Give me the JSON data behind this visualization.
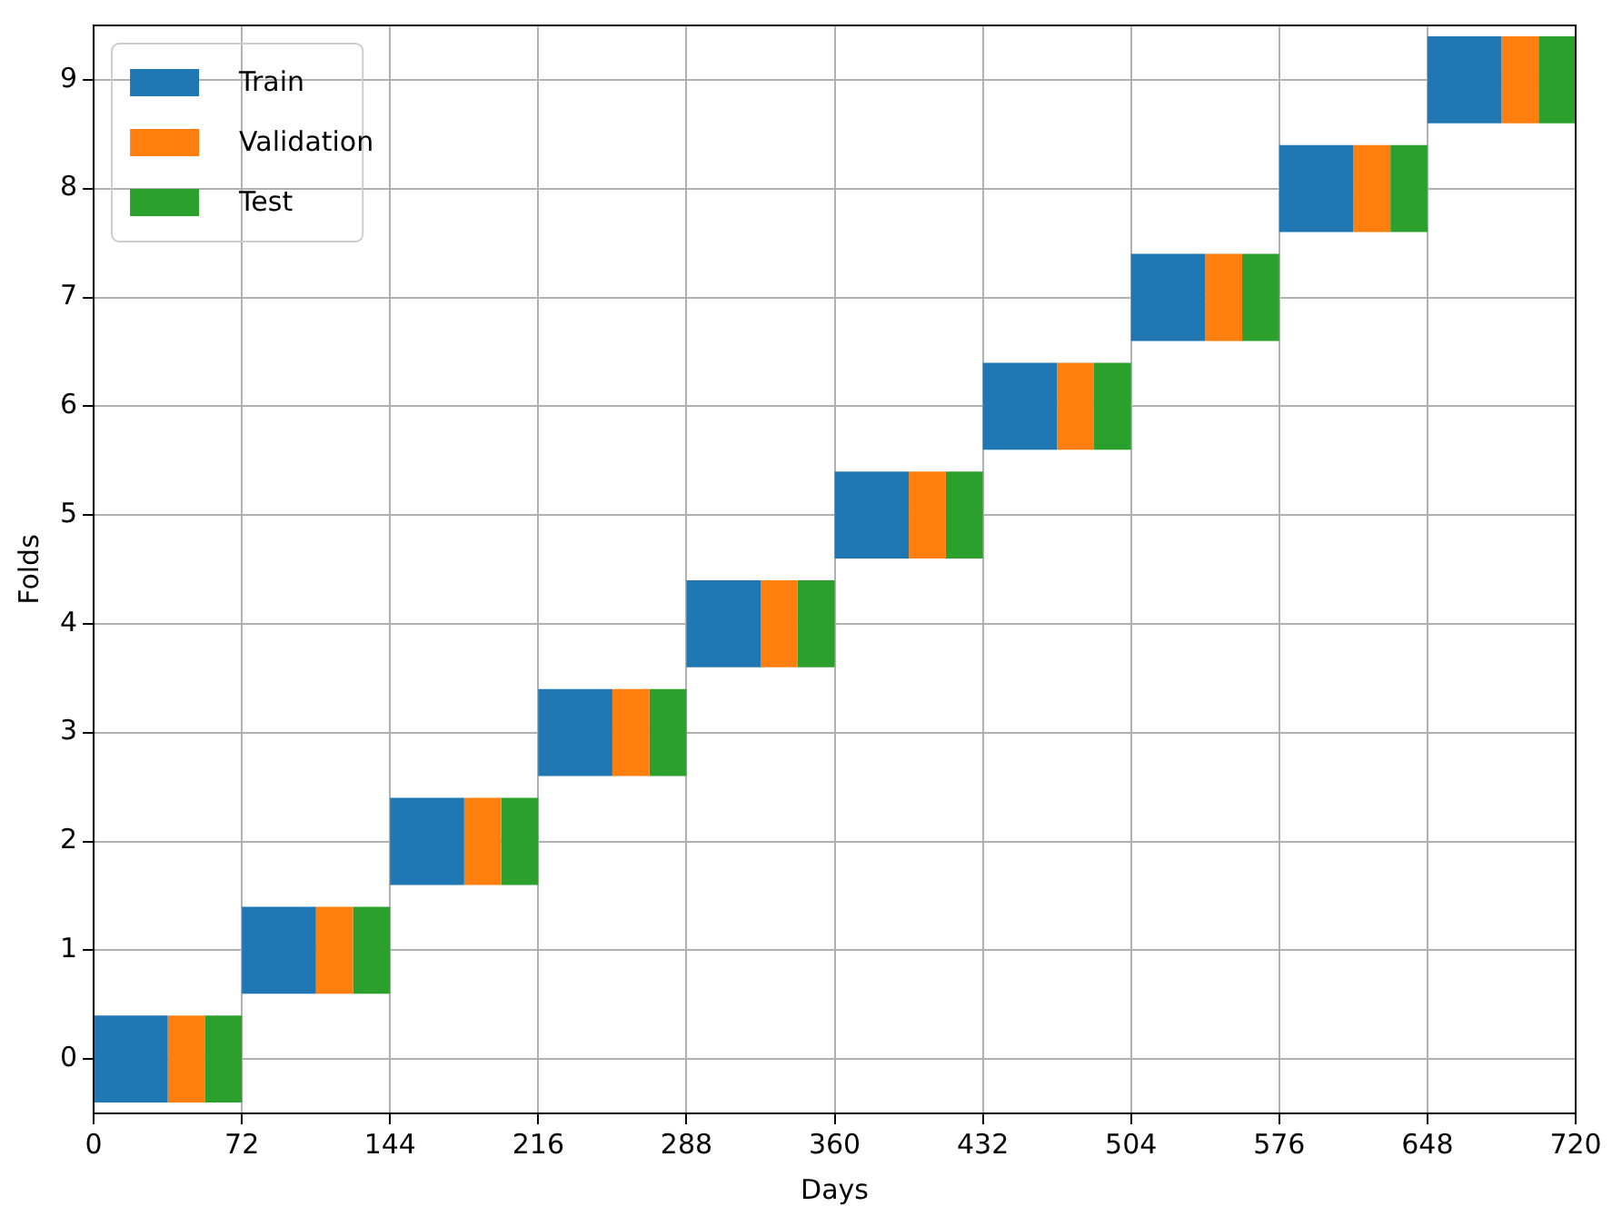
{
  "chart_data": {
    "type": "bar",
    "orientation": "horizontal",
    "xlabel": "Days",
    "ylabel": "Folds",
    "categories": [
      "9",
      "8",
      "7",
      "6",
      "5",
      "4",
      "3",
      "2",
      "1",
      "0"
    ],
    "series": [
      {
        "name": "Train",
        "color": "#1f77b4",
        "base": [
          648,
          576,
          504,
          432,
          360,
          288,
          216,
          144,
          72,
          0
        ],
        "values": [
          36,
          36,
          36,
          36,
          36,
          36,
          36,
          36,
          36,
          36
        ]
      },
      {
        "name": "Validation",
        "color": "#ff7f0e",
        "base": [
          684,
          612,
          540,
          468,
          396,
          324,
          252,
          180,
          108,
          36
        ],
        "values": [
          18,
          18,
          18,
          18,
          18,
          18,
          18,
          18,
          18,
          18
        ]
      },
      {
        "name": "Test",
        "color": "#2ca02c",
        "base": [
          702,
          630,
          558,
          486,
          414,
          342,
          270,
          198,
          126,
          54
        ],
        "values": [
          18,
          18,
          18,
          18,
          18,
          18,
          18,
          18,
          18,
          18
        ]
      }
    ],
    "xlim": [
      0,
      720
    ],
    "xticks": [
      0,
      72,
      144,
      216,
      288,
      360,
      432,
      504,
      576,
      648,
      720
    ],
    "grid": true,
    "legend": "top left"
  }
}
